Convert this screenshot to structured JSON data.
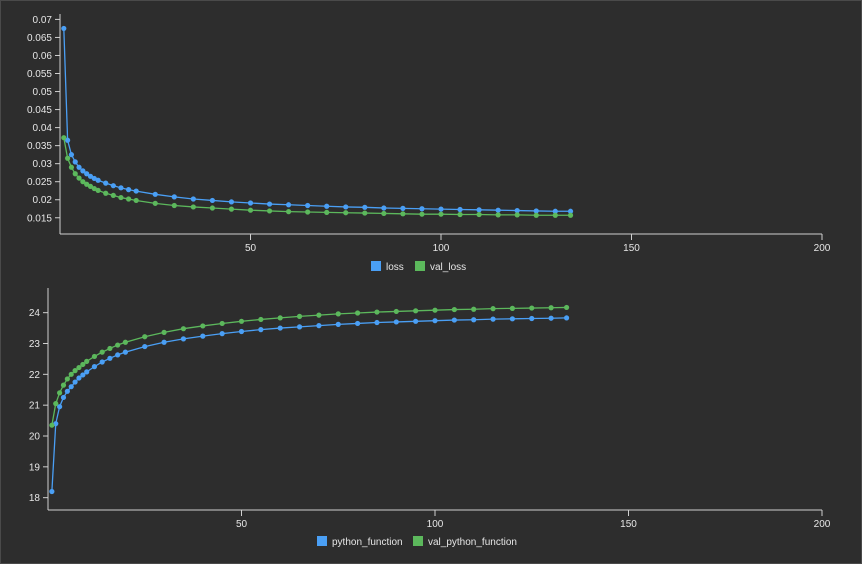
{
  "colors": {
    "background": "#2d2d2d",
    "axis": "#d0d0d0",
    "text": "#e6e6e6"
  },
  "chart_data": [
    {
      "type": "line",
      "title": "",
      "xlabel": "",
      "ylabel": "",
      "xlim": [
        0,
        200
      ],
      "ylim": [
        0.0105,
        0.0715
      ],
      "x_ticks": [
        50,
        100,
        150,
        200
      ],
      "y_ticks": [
        0.015,
        0.02,
        0.025,
        0.03,
        0.035,
        0.04,
        0.045,
        0.05,
        0.055,
        0.06,
        0.065,
        0.07
      ],
      "y_tick_labels": [
        "0.015",
        "0.02",
        "0.025",
        "0.03",
        "0.035",
        "0.04",
        "0.045",
        "0.05",
        "0.055",
        "0.06",
        "0.065",
        "0.07"
      ],
      "x_tick_labels": [
        "50",
        "100",
        "150",
        "200"
      ],
      "grid": false,
      "legend_position": "bottom-center",
      "series": [
        {
          "name": "loss",
          "color": "#4a9ff5",
          "x": [
            1,
            2,
            3,
            4,
            5,
            6,
            7,
            8,
            9,
            10,
            12,
            14,
            16,
            18,
            20,
            25,
            30,
            35,
            40,
            45,
            50,
            55,
            60,
            65,
            70,
            75,
            80,
            85,
            90,
            95,
            100,
            105,
            110,
            115,
            120,
            125,
            130,
            134
          ],
          "y": [
            0.0675,
            0.0365,
            0.0325,
            0.0305,
            0.029,
            0.028,
            0.0272,
            0.0265,
            0.0259,
            0.0254,
            0.0246,
            0.0239,
            0.0233,
            0.0228,
            0.0224,
            0.0215,
            0.0208,
            0.0202,
            0.0198,
            0.0194,
            0.0191,
            0.0188,
            0.0186,
            0.0184,
            0.0182,
            0.018,
            0.0179,
            0.0177,
            0.0176,
            0.0175,
            0.0174,
            0.0173,
            0.0172,
            0.0171,
            0.017,
            0.0169,
            0.0168,
            0.0168
          ]
        },
        {
          "name": "val_loss",
          "color": "#5cb85c",
          "x": [
            1,
            2,
            3,
            4,
            5,
            6,
            7,
            8,
            9,
            10,
            12,
            14,
            16,
            18,
            20,
            25,
            30,
            35,
            40,
            45,
            50,
            55,
            60,
            65,
            70,
            75,
            80,
            85,
            90,
            95,
            100,
            105,
            110,
            115,
            120,
            125,
            130,
            134
          ],
          "y": [
            0.0372,
            0.0315,
            0.029,
            0.0272,
            0.026,
            0.025,
            0.0243,
            0.0237,
            0.0231,
            0.0226,
            0.0218,
            0.0212,
            0.0206,
            0.0202,
            0.0198,
            0.019,
            0.0184,
            0.018,
            0.0177,
            0.0174,
            0.0171,
            0.0169,
            0.0167,
            0.0166,
            0.0165,
            0.0164,
            0.0163,
            0.0162,
            0.0161,
            0.016,
            0.016,
            0.0159,
            0.0159,
            0.0158,
            0.0158,
            0.0157,
            0.0157,
            0.0157
          ]
        }
      ]
    },
    {
      "type": "line",
      "title": "",
      "xlabel": "",
      "ylabel": "",
      "xlim": [
        0,
        200
      ],
      "ylim": [
        17.6,
        24.8
      ],
      "x_ticks": [
        50,
        100,
        150,
        200
      ],
      "y_ticks": [
        18,
        19,
        20,
        21,
        22,
        23,
        24
      ],
      "y_tick_labels": [
        "18",
        "19",
        "20",
        "21",
        "22",
        "23",
        "24"
      ],
      "x_tick_labels": [
        "50",
        "100",
        "150",
        "200"
      ],
      "grid": false,
      "legend_position": "bottom-center",
      "series": [
        {
          "name": "python_function",
          "color": "#4a9ff5",
          "x": [
            1,
            2,
            3,
            4,
            5,
            6,
            7,
            8,
            9,
            10,
            12,
            14,
            16,
            18,
            20,
            25,
            30,
            35,
            40,
            45,
            50,
            55,
            60,
            65,
            70,
            75,
            80,
            85,
            90,
            95,
            100,
            105,
            110,
            115,
            120,
            125,
            130,
            134
          ],
          "y": [
            18.2,
            20.4,
            20.95,
            21.25,
            21.45,
            21.6,
            21.75,
            21.88,
            21.98,
            22.08,
            22.25,
            22.4,
            22.52,
            22.63,
            22.72,
            22.9,
            23.04,
            23.15,
            23.24,
            23.32,
            23.39,
            23.45,
            23.5,
            23.54,
            23.58,
            23.62,
            23.65,
            23.68,
            23.7,
            23.72,
            23.74,
            23.76,
            23.77,
            23.79,
            23.8,
            23.81,
            23.82,
            23.83
          ]
        },
        {
          "name": "val_python_function",
          "color": "#5cb85c",
          "x": [
            1,
            2,
            3,
            4,
            5,
            6,
            7,
            8,
            9,
            10,
            12,
            14,
            16,
            18,
            20,
            25,
            30,
            35,
            40,
            45,
            50,
            55,
            60,
            65,
            70,
            75,
            80,
            85,
            90,
            95,
            100,
            105,
            110,
            115,
            120,
            125,
            130,
            134
          ],
          "y": [
            20.35,
            21.05,
            21.4,
            21.65,
            21.85,
            22.0,
            22.12,
            22.22,
            22.32,
            22.42,
            22.58,
            22.72,
            22.84,
            22.95,
            23.04,
            23.22,
            23.36,
            23.48,
            23.57,
            23.65,
            23.72,
            23.78,
            23.83,
            23.88,
            23.92,
            23.96,
            23.99,
            24.02,
            24.04,
            24.06,
            24.08,
            24.1,
            24.11,
            24.13,
            24.14,
            24.15,
            24.16,
            24.17
          ]
        }
      ]
    }
  ]
}
